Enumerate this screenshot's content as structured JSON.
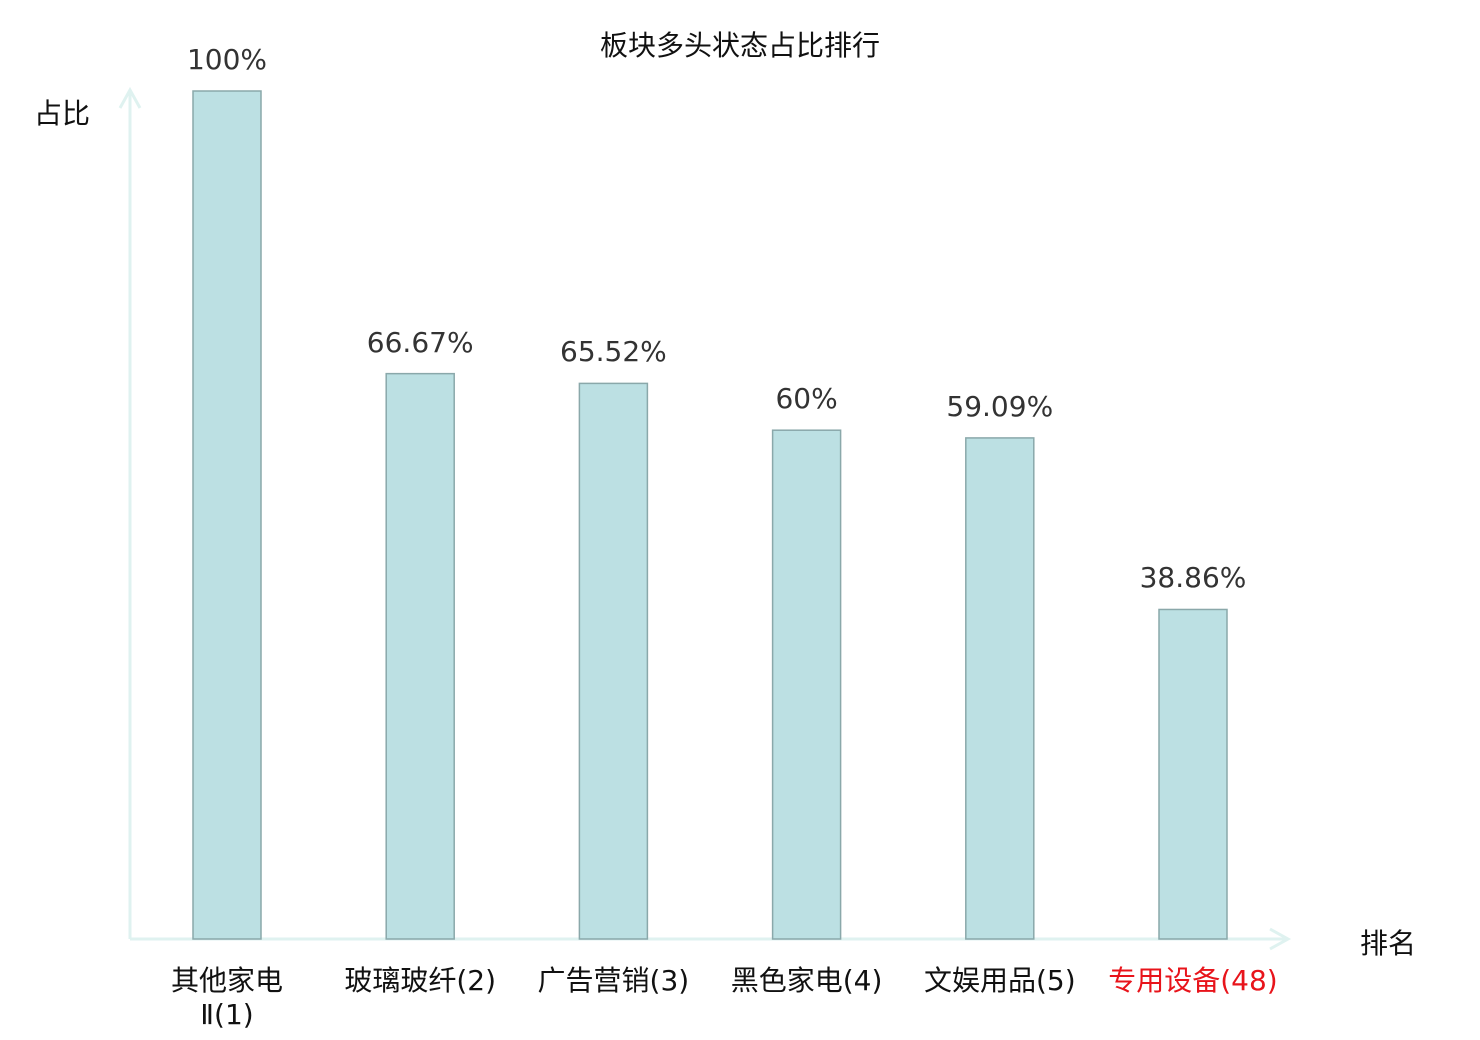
{
  "chart_data": {
    "type": "bar",
    "title": "板块多头状态占比排行",
    "xlabel": "排名",
    "ylabel": "占比",
    "categories": [
      "其他家电\nⅡ(1)",
      "玻璃玻纤(2)",
      "广告营销(3)",
      "黑色家电(4)",
      "文娱用品(5)",
      "专用设备(48)"
    ],
    "values": [
      100,
      66.67,
      65.52,
      60,
      59.09,
      38.86
    ],
    "data_labels": [
      "100%",
      "66.67%",
      "65.52%",
      "60%",
      "59.09%",
      "38.86%"
    ],
    "highlight_index": 5,
    "ylim": [
      0,
      100
    ],
    "grid": false,
    "colors": {
      "bar_fill": "#bce0e3",
      "bar_stroke": "#8aa8aa",
      "axis": "#dff2f0",
      "highlight_label": "#e8141b"
    }
  }
}
